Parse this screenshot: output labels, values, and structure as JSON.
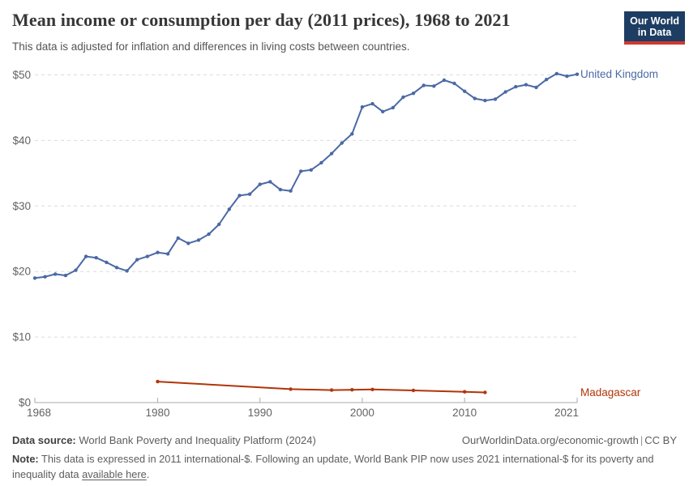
{
  "header": {
    "title": "Mean income or consumption per day (2011 prices), 1968 to 2021",
    "subtitle": "This data is adjusted for inflation and differences in living costs between countries.",
    "logo_line1": "Our World",
    "logo_line2": "in Data"
  },
  "chart_data": {
    "type": "line",
    "title": "Mean income or consumption per day (2011 prices), 1968 to 2021",
    "xlabel": "",
    "ylabel": "",
    "xlim": [
      1968,
      2021
    ],
    "ylim": [
      0,
      50
    ],
    "x_ticks": [
      1968,
      1980,
      1990,
      2000,
      2010,
      2021
    ],
    "y_ticks": [
      0,
      10,
      20,
      30,
      40,
      50
    ],
    "y_tick_prefix": "$",
    "grid": "horizontal-dashed",
    "legend_position": "right-of-line-end",
    "series": [
      {
        "name": "United Kingdom",
        "color": "#4a69a5",
        "x": [
          1968,
          1969,
          1970,
          1971,
          1972,
          1973,
          1974,
          1975,
          1976,
          1977,
          1978,
          1979,
          1980,
          1981,
          1982,
          1983,
          1984,
          1985,
          1986,
          1987,
          1988,
          1989,
          1990,
          1991,
          1992,
          1993,
          1994,
          1995,
          1996,
          1997,
          1998,
          1999,
          2000,
          2001,
          2002,
          2003,
          2004,
          2005,
          2006,
          2007,
          2008,
          2009,
          2010,
          2011,
          2012,
          2013,
          2014,
          2015,
          2016,
          2017,
          2018,
          2019,
          2020,
          2021
        ],
        "values": [
          19.0,
          19.2,
          19.6,
          19.4,
          20.2,
          22.3,
          22.1,
          21.4,
          20.6,
          20.1,
          21.8,
          22.3,
          22.9,
          22.7,
          25.1,
          24.3,
          24.8,
          25.7,
          27.2,
          29.5,
          31.6,
          31.8,
          33.3,
          33.7,
          32.5,
          32.3,
          35.3,
          35.5,
          36.6,
          38.0,
          39.6,
          41.0,
          45.1,
          45.6,
          44.4,
          45.0,
          46.6,
          47.2,
          48.4,
          48.3,
          49.2,
          48.7,
          47.5,
          46.4,
          46.1,
          46.3,
          47.4,
          48.2,
          48.5,
          48.1,
          49.3,
          50.2,
          49.8,
          50.1
        ]
      },
      {
        "name": "Madagascar",
        "color": "#b13507",
        "x": [
          1980,
          1993,
          1997,
          1999,
          2001,
          2005,
          2010,
          2012
        ],
        "values": [
          3.2,
          2.05,
          1.9,
          1.95,
          2.0,
          1.85,
          1.65,
          1.55
        ]
      }
    ]
  },
  "footer": {
    "datasource_label": "Data source:",
    "datasource_text": "World Bank Poverty and Inequality Platform (2024)",
    "url_text": "OurWorldinData.org/economic-growth",
    "separator": "|",
    "license": "CC BY",
    "note_label": "Note:",
    "note_body": "This data is expressed in 2011 international-$. Following an update, World Bank PIP now uses 2021 international-$ for its poverty and inequality data",
    "note_link": "available here",
    "note_period": "."
  },
  "colors": {
    "uk_line": "#4a69a5",
    "madagascar_line": "#b13507",
    "grid": "#dcdcdc",
    "axis": "#a9a9a9",
    "tick_text": "#636363",
    "logo_bg": "#1d3d63",
    "logo_bar": "#d0392f"
  }
}
